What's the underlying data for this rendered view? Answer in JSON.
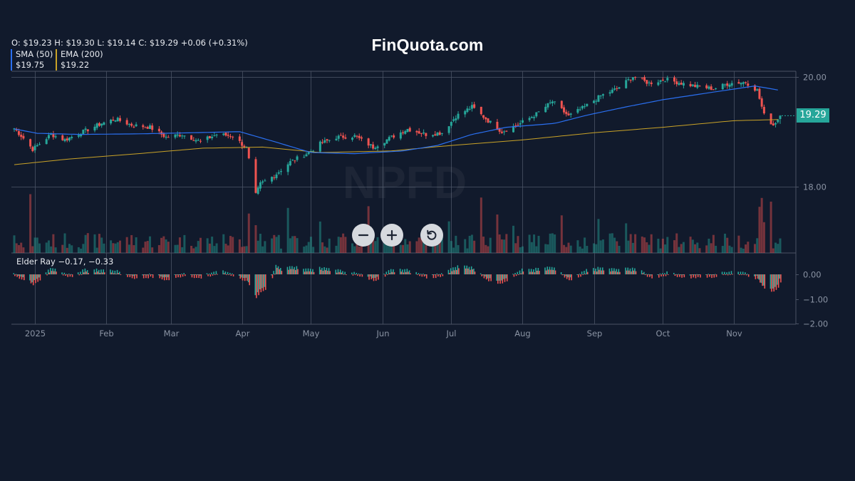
{
  "brand": "FinQuota.com",
  "ohlc": {
    "open_label": "O:",
    "open": "$19.23",
    "high_label": "H:",
    "high": "$19.30",
    "low_label": "L:",
    "low": "$19.14",
    "close_label": "C:",
    "close": "$19.29",
    "change": "+0.06 (+0.31%)"
  },
  "indicators": {
    "sma": {
      "label": "SMA (50)",
      "value": "$19.75",
      "color": "#2a6ff0"
    },
    "ema": {
      "label": "EMA (200)",
      "value": "$19.22",
      "color": "#c9a227"
    }
  },
  "elder_ray": {
    "label": "Elder Ray −0.17, −0.33"
  },
  "last_price_tag": "19.29",
  "watermark": "NPFD",
  "controls": {
    "zoom_out_icon": "minus-icon",
    "zoom_in_icon": "plus-icon",
    "reset_icon": "reset-icon"
  },
  "colors": {
    "up": "#26a69a",
    "down": "#ef5350",
    "background": "#111a2c",
    "grid": "#4a5365"
  },
  "chart_data": {
    "type": "candlestick",
    "symbol": "NPFD",
    "price_axis": {
      "ticks": [
        "20.00",
        "18.00"
      ],
      "range": [
        17.1,
        20.12
      ]
    },
    "elder_axis": {
      "ticks": [
        "0.00",
        "−1.00",
        "−2.00"
      ],
      "range": [
        -2.0,
        0.6
      ]
    },
    "x_ticks": [
      "2025",
      "Feb",
      "Mar",
      "Apr",
      "May",
      "Jun",
      "Jul",
      "Aug",
      "Sep",
      "Oct",
      "Nov"
    ],
    "close_anchors": [
      [
        "2024-12-23",
        19.06
      ],
      [
        "2024-12-27",
        18.88
      ],
      [
        "2024-12-31",
        18.68
      ],
      [
        "2025-01-03",
        18.78
      ],
      [
        "2025-01-08",
        18.95
      ],
      [
        "2025-01-14",
        18.85
      ],
      [
        "2025-01-22",
        19.0
      ],
      [
        "2025-01-30",
        19.15
      ],
      [
        "2025-02-05",
        19.23
      ],
      [
        "2025-02-12",
        19.12
      ],
      [
        "2025-02-20",
        19.08
      ],
      [
        "2025-02-27",
        18.9
      ],
      [
        "2025-03-06",
        18.95
      ],
      [
        "2025-03-14",
        18.82
      ],
      [
        "2025-03-21",
        18.95
      ],
      [
        "2025-03-28",
        18.92
      ],
      [
        "2025-04-03",
        18.7
      ],
      [
        "2025-04-07",
        17.85
      ],
      [
        "2025-04-09",
        18.05
      ],
      [
        "2025-04-15",
        18.2
      ],
      [
        "2025-04-22",
        18.45
      ],
      [
        "2025-04-30",
        18.62
      ],
      [
        "2025-05-05",
        18.78
      ],
      [
        "2025-05-12",
        18.9
      ],
      [
        "2025-05-20",
        18.92
      ],
      [
        "2025-05-28",
        18.72
      ],
      [
        "2025-06-05",
        18.9
      ],
      [
        "2025-06-12",
        19.05
      ],
      [
        "2025-06-20",
        18.95
      ],
      [
        "2025-06-27",
        18.98
      ],
      [
        "2025-07-03",
        19.28
      ],
      [
        "2025-07-10",
        19.45
      ],
      [
        "2025-07-17",
        19.2
      ],
      [
        "2025-07-23",
        19.0
      ],
      [
        "2025-07-31",
        19.15
      ],
      [
        "2025-08-07",
        19.32
      ],
      [
        "2025-08-14",
        19.55
      ],
      [
        "2025-08-21",
        19.28
      ],
      [
        "2025-08-28",
        19.45
      ],
      [
        "2025-09-04",
        19.65
      ],
      [
        "2025-09-11",
        19.78
      ],
      [
        "2025-09-18",
        20.0
      ],
      [
        "2025-09-25",
        19.88
      ],
      [
        "2025-10-02",
        19.95
      ],
      [
        "2025-10-09",
        19.88
      ],
      [
        "2025-10-16",
        19.82
      ],
      [
        "2025-10-23",
        19.78
      ],
      [
        "2025-10-30",
        19.88
      ],
      [
        "2025-11-06",
        19.9
      ],
      [
        "2025-11-11",
        19.75
      ],
      [
        "2025-11-14",
        19.3
      ],
      [
        "2025-11-18",
        19.12
      ],
      [
        "2025-11-21",
        19.29
      ]
    ],
    "sma50": [
      [
        "2024-12-23",
        19.05
      ],
      [
        "2025-01-02",
        18.97
      ],
      [
        "2025-01-20",
        18.95
      ],
      [
        "2025-02-15",
        18.96
      ],
      [
        "2025-03-10",
        18.98
      ],
      [
        "2025-03-31",
        19.0
      ],
      [
        "2025-04-15",
        18.82
      ],
      [
        "2025-05-01",
        18.62
      ],
      [
        "2025-05-20",
        18.6
      ],
      [
        "2025-06-10",
        18.65
      ],
      [
        "2025-06-25",
        18.75
      ],
      [
        "2025-07-10",
        18.95
      ],
      [
        "2025-07-25",
        19.08
      ],
      [
        "2025-08-15",
        19.15
      ],
      [
        "2025-08-29",
        19.3
      ],
      [
        "2025-09-15",
        19.45
      ],
      [
        "2025-10-01",
        19.58
      ],
      [
        "2025-10-20",
        19.7
      ],
      [
        "2025-11-10",
        19.83
      ],
      [
        "2025-11-21",
        19.75
      ]
    ],
    "ema200": [
      [
        "2024-12-23",
        18.4
      ],
      [
        "2025-01-15",
        18.5
      ],
      [
        "2025-02-15",
        18.6
      ],
      [
        "2025-03-15",
        18.7
      ],
      [
        "2025-04-10",
        18.72
      ],
      [
        "2025-05-05",
        18.62
      ],
      [
        "2025-06-05",
        18.65
      ],
      [
        "2025-07-01",
        18.75
      ],
      [
        "2025-08-01",
        18.85
      ],
      [
        "2025-09-01",
        18.98
      ],
      [
        "2025-10-01",
        19.08
      ],
      [
        "2025-11-01",
        19.2
      ],
      [
        "2025-11-21",
        19.22
      ]
    ],
    "last": {
      "open": 19.23,
      "high": 19.3,
      "low": 19.14,
      "close": 19.29
    },
    "elder_ray_last": {
      "bull_power": -0.17,
      "bear_power": -0.33
    }
  }
}
